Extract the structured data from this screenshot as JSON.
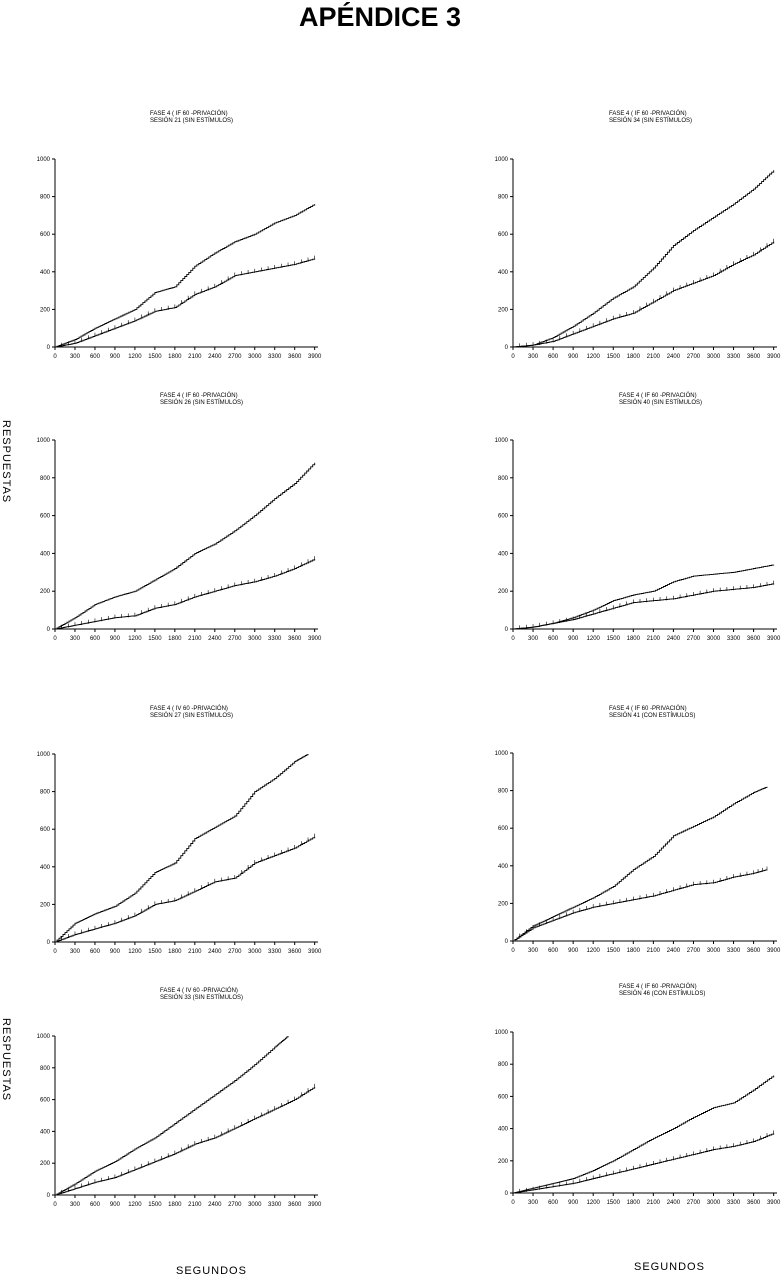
{
  "page": {
    "title": "APÉNDICE 3"
  },
  "axis_labels": {
    "y_upper": "RESPUESTAS",
    "y_lower": "RESPUESTAS",
    "x_left": "SEGUNDOS",
    "x_right": "SEGUNDOS"
  },
  "chart_data": [
    {
      "type": "line",
      "title_line1": "FASE 4 ( IF 60 -PRIVACIÓN)",
      "title_line2": "SESIÓN 21 (SIN ESTÍMULOS)",
      "x_ticks": [
        0,
        300,
        600,
        900,
        1200,
        1500,
        1800,
        2100,
        2400,
        2700,
        3000,
        3300,
        3600,
        3900
      ],
      "y_ticks": [
        0,
        200,
        400,
        600,
        800,
        1000
      ],
      "xlim": [
        0,
        3950
      ],
      "ylim": [
        0,
        1000
      ],
      "series": [
        {
          "style": "plain",
          "x": [
            0,
            300,
            600,
            900,
            1200,
            1500,
            1800,
            2100,
            2400,
            2700,
            3000,
            3300,
            3600,
            3900
          ],
          "y": [
            0,
            40,
            100,
            150,
            200,
            290,
            320,
            430,
            500,
            560,
            600,
            660,
            700,
            760
          ]
        },
        {
          "style": "ticked",
          "x": [
            0,
            300,
            600,
            900,
            1200,
            1500,
            1800,
            2100,
            2400,
            2700,
            3000,
            3300,
            3600,
            3900
          ],
          "y": [
            0,
            20,
            60,
            100,
            140,
            190,
            210,
            280,
            320,
            380,
            400,
            420,
            440,
            470
          ]
        }
      ]
    },
    {
      "type": "line",
      "title_line1": "FASE 4 ( IF 60 -PRIVACIÓN)",
      "title_line2": "SESIÓN 34 (SIN ESTÍMULOS)",
      "x_ticks": [
        0,
        300,
        600,
        900,
        1200,
        1500,
        1800,
        2100,
        2400,
        2700,
        3000,
        3300,
        3600,
        3900
      ],
      "y_ticks": [
        0,
        200,
        400,
        600,
        800,
        1000
      ],
      "xlim": [
        0,
        3950
      ],
      "ylim": [
        0,
        1000
      ],
      "series": [
        {
          "style": "plain",
          "x": [
            0,
            300,
            600,
            900,
            1200,
            1500,
            1800,
            2100,
            2400,
            2700,
            3000,
            3300,
            3600,
            3900
          ],
          "y": [
            0,
            10,
            50,
            110,
            180,
            260,
            320,
            420,
            540,
            620,
            690,
            760,
            840,
            940
          ]
        },
        {
          "style": "ticked",
          "x": [
            0,
            300,
            600,
            900,
            1200,
            1500,
            1800,
            2100,
            2400,
            2700,
            3000,
            3300,
            3600,
            3900
          ],
          "y": [
            0,
            10,
            30,
            70,
            110,
            150,
            180,
            240,
            300,
            340,
            380,
            440,
            490,
            560
          ]
        }
      ]
    },
    {
      "type": "line",
      "title_line1": "FASE 4 ( IF 60 -PRIVACIÓN)",
      "title_line2": "SESIÓN 26 (SIN ESTÍMULOS)",
      "x_ticks": [
        0,
        300,
        600,
        900,
        1200,
        1500,
        1800,
        2100,
        2400,
        2700,
        3000,
        3300,
        3600,
        3900
      ],
      "y_ticks": [
        0,
        200,
        400,
        600,
        800,
        1000
      ],
      "xlim": [
        0,
        3950
      ],
      "ylim": [
        0,
        1000
      ],
      "series": [
        {
          "style": "plain",
          "x": [
            0,
            300,
            600,
            900,
            1200,
            1500,
            1800,
            2100,
            2400,
            2700,
            3000,
            3300,
            3600,
            3900
          ],
          "y": [
            0,
            60,
            130,
            170,
            200,
            260,
            320,
            400,
            450,
            520,
            600,
            690,
            770,
            880
          ]
        },
        {
          "style": "ticked",
          "x": [
            0,
            300,
            600,
            900,
            1200,
            1500,
            1800,
            2100,
            2400,
            2700,
            3000,
            3300,
            3600,
            3900
          ],
          "y": [
            0,
            20,
            40,
            60,
            70,
            110,
            130,
            170,
            200,
            230,
            250,
            280,
            320,
            370
          ]
        }
      ]
    },
    {
      "type": "line",
      "title_line1": "FASE 4 ( IF 60 -PRIVACIÓN)",
      "title_line2": "SESIÓN 40 (SIN ESTÍMULOS)",
      "x_ticks": [
        0,
        300,
        600,
        900,
        1200,
        1500,
        1800,
        2100,
        2400,
        2700,
        3000,
        3300,
        3600,
        3900
      ],
      "y_ticks": [
        0,
        200,
        400,
        600,
        800,
        1000
      ],
      "xlim": [
        0,
        3950
      ],
      "ylim": [
        0,
        1000
      ],
      "series": [
        {
          "style": "plain",
          "x": [
            0,
            300,
            600,
            900,
            1200,
            1500,
            1800,
            2100,
            2400,
            2700,
            3000,
            3300,
            3600,
            3900
          ],
          "y": [
            0,
            10,
            30,
            60,
            100,
            150,
            180,
            200,
            250,
            280,
            290,
            300,
            320,
            340
          ]
        },
        {
          "style": "ticked",
          "x": [
            0,
            300,
            600,
            900,
            1200,
            1500,
            1800,
            2100,
            2400,
            2700,
            3000,
            3300,
            3600,
            3900
          ],
          "y": [
            0,
            10,
            30,
            50,
            80,
            110,
            140,
            150,
            160,
            180,
            200,
            210,
            220,
            240
          ]
        }
      ]
    },
    {
      "type": "line",
      "title_line1": "FASE 4 ( IV 60 -PRIVACIÓN)",
      "title_line2": "SESIÓN 27 (SIN ESTÍMULOS)",
      "x_ticks": [
        0,
        300,
        600,
        900,
        1200,
        1500,
        1800,
        2100,
        2400,
        2700,
        3000,
        3300,
        3600,
        3900
      ],
      "y_ticks": [
        0,
        200,
        400,
        600,
        800,
        1000
      ],
      "xlim": [
        0,
        3950
      ],
      "ylim": [
        0,
        1000
      ],
      "series": [
        {
          "style": "plain",
          "x": [
            0,
            300,
            600,
            900,
            1200,
            1500,
            1800,
            2100,
            2400,
            2700,
            3000,
            3300,
            3600,
            3800
          ],
          "y": [
            0,
            100,
            150,
            190,
            260,
            370,
            420,
            550,
            610,
            670,
            800,
            870,
            960,
            1000
          ]
        },
        {
          "style": "ticked",
          "x": [
            0,
            300,
            600,
            900,
            1200,
            1500,
            1800,
            2100,
            2400,
            2700,
            3000,
            3300,
            3600,
            3900
          ],
          "y": [
            0,
            40,
            70,
            100,
            140,
            200,
            220,
            270,
            320,
            340,
            420,
            460,
            500,
            560
          ]
        }
      ]
    },
    {
      "type": "line",
      "title_line1": "FASE 4 ( IF 60 -PRIVACIÓN)",
      "title_line2": "SESIÓN 41 (CON ESTÍMULOS)",
      "x_ticks": [
        0,
        300,
        600,
        900,
        1200,
        1500,
        1800,
        2100,
        2400,
        2700,
        3000,
        3300,
        3600,
        3900
      ],
      "y_ticks": [
        0,
        200,
        400,
        600,
        800,
        1000
      ],
      "xlim": [
        0,
        3950
      ],
      "ylim": [
        0,
        1000
      ],
      "series": [
        {
          "style": "plain",
          "x": [
            0,
            300,
            600,
            900,
            1200,
            1500,
            1800,
            2100,
            2400,
            2700,
            3000,
            3300,
            3600,
            3800
          ],
          "y": [
            0,
            80,
            130,
            180,
            230,
            290,
            380,
            450,
            560,
            610,
            660,
            730,
            790,
            820
          ]
        },
        {
          "style": "ticked",
          "x": [
            0,
            300,
            600,
            900,
            1200,
            1500,
            1800,
            2100,
            2400,
            2700,
            3000,
            3300,
            3600,
            3800
          ],
          "y": [
            0,
            70,
            110,
            150,
            180,
            200,
            220,
            240,
            270,
            300,
            310,
            340,
            360,
            380
          ]
        }
      ]
    },
    {
      "type": "line",
      "title_line1": "FASE 4 ( IV 60 -PRIVACIÓN)",
      "title_line2": "SESIÓN 33 (SIN ESTÍMULOS)",
      "x_ticks": [
        0,
        300,
        600,
        900,
        1200,
        1500,
        1800,
        2100,
        2400,
        2700,
        3000,
        3300,
        3600,
        3900
      ],
      "y_ticks": [
        0,
        200,
        400,
        600,
        800,
        1000
      ],
      "xlim": [
        0,
        3950
      ],
      "ylim": [
        0,
        1000
      ],
      "series": [
        {
          "style": "plain",
          "x": [
            0,
            300,
            600,
            900,
            1200,
            1500,
            1800,
            2100,
            2400,
            2700,
            3000,
            3300,
            3500
          ],
          "y": [
            0,
            70,
            150,
            210,
            290,
            360,
            450,
            540,
            630,
            720,
            820,
            930,
            1000
          ]
        },
        {
          "style": "ticked",
          "x": [
            0,
            300,
            600,
            900,
            1200,
            1500,
            1800,
            2100,
            2400,
            2700,
            3000,
            3300,
            3600,
            3900
          ],
          "y": [
            0,
            40,
            80,
            110,
            160,
            210,
            260,
            320,
            360,
            420,
            480,
            540,
            600,
            680
          ]
        }
      ]
    },
    {
      "type": "line",
      "title_line1": "FASE 4 ( IF 60 -PRIVACIÓN)",
      "title_line2": "SESIÓN 46 (CON ESTÍMULOS)",
      "x_ticks": [
        0,
        300,
        600,
        900,
        1200,
        1500,
        1800,
        2100,
        2400,
        2700,
        3000,
        3300,
        3600,
        3900
      ],
      "y_ticks": [
        0,
        200,
        400,
        600,
        800,
        1000
      ],
      "xlim": [
        0,
        3950
      ],
      "ylim": [
        0,
        1000
      ],
      "series": [
        {
          "style": "plain",
          "x": [
            0,
            300,
            600,
            900,
            1200,
            1500,
            1800,
            2100,
            2400,
            2700,
            3000,
            3300,
            3600,
            3900
          ],
          "y": [
            0,
            30,
            60,
            90,
            140,
            200,
            270,
            340,
            400,
            470,
            530,
            560,
            640,
            730
          ]
        },
        {
          "style": "ticked",
          "x": [
            0,
            300,
            600,
            900,
            1200,
            1500,
            1800,
            2100,
            2400,
            2700,
            3000,
            3300,
            3600,
            3900
          ],
          "y": [
            0,
            20,
            40,
            60,
            90,
            120,
            150,
            180,
            210,
            240,
            270,
            290,
            320,
            370
          ]
        }
      ]
    }
  ]
}
